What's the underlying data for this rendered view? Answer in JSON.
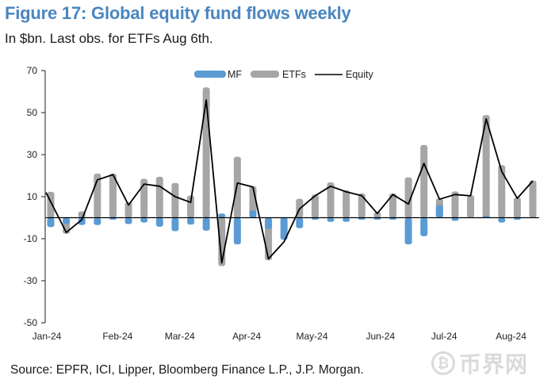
{
  "header": {
    "title": "Figure 17: Global equity fund flows weekly",
    "subtitle": "In $bn. Last obs. for ETFs Aug 6th."
  },
  "footer": {
    "source": "Source: EPFR, ICI, Lipper, Bloomberg Finance L.P., J.P. Morgan."
  },
  "watermark": {
    "icon": "bitcoin-coin-icon",
    "text": "币界网"
  },
  "colors": {
    "title": "#4a86c0",
    "mf": "#5b9bd5",
    "etf": "#a6a6a6",
    "equity": "#000000"
  },
  "chart_data": {
    "type": "bar",
    "title": "Figure 17: Global equity fund flows weekly",
    "subtitle": "In $bn. Last obs. for ETFs Aug 6th.",
    "xlabel": "",
    "ylabel": "",
    "ylim": [
      -50,
      70
    ],
    "yticks": [
      70,
      50,
      30,
      10,
      -10,
      -30,
      -50
    ],
    "xtick_labels": [
      "Jan-24",
      "Feb-24",
      "Mar-24",
      "Apr-24",
      "May-24",
      "Jun-24",
      "Jul-24",
      "Aug-24"
    ],
    "xtick_week_index": [
      0,
      4.3,
      8.3,
      12.6,
      16.8,
      21.2,
      25.3,
      29.6
    ],
    "grid": false,
    "legend": {
      "position": "top-right",
      "entries": [
        "MF",
        "ETFs",
        "Equity"
      ]
    },
    "weeks": 32,
    "series": [
      {
        "name": "MF",
        "type": "bar",
        "values": [
          -4.5,
          -3,
          -3.5,
          -3.5,
          -1,
          -3,
          -2.3,
          -4.3,
          -6.4,
          -3.3,
          -6.2,
          2,
          -12.7,
          3.5,
          -5.4,
          -10.5,
          -5,
          -1,
          -2,
          -2,
          -1,
          -1,
          -1,
          -12.7,
          -8.8,
          6,
          -1.5,
          0,
          1,
          -2.3,
          -1,
          0
        ]
      },
      {
        "name": "ETFs",
        "type": "bar",
        "values": [
          12.3,
          -7.7,
          3,
          21,
          21,
          7.3,
          18.5,
          19.5,
          16.5,
          10.5,
          62,
          -23,
          29,
          15,
          -20.3,
          -1,
          9,
          11,
          16.8,
          13,
          11.5,
          2.7,
          11.5,
          19.2,
          34.6,
          9.2,
          12.5,
          10.7,
          48.8,
          25,
          9.6,
          17.7
        ]
      },
      {
        "name": "Equity",
        "type": "line",
        "values": [
          12,
          -7,
          -1,
          18,
          20.5,
          6,
          16,
          15,
          10,
          7.3,
          56,
          -21.5,
          16.5,
          14.6,
          -19.6,
          -11.5,
          4.2,
          10.4,
          15,
          12.3,
          10.5,
          2,
          11,
          6.5,
          25.8,
          8.8,
          11,
          10.4,
          47,
          22,
          9.2,
          17.5
        ]
      }
    ]
  }
}
